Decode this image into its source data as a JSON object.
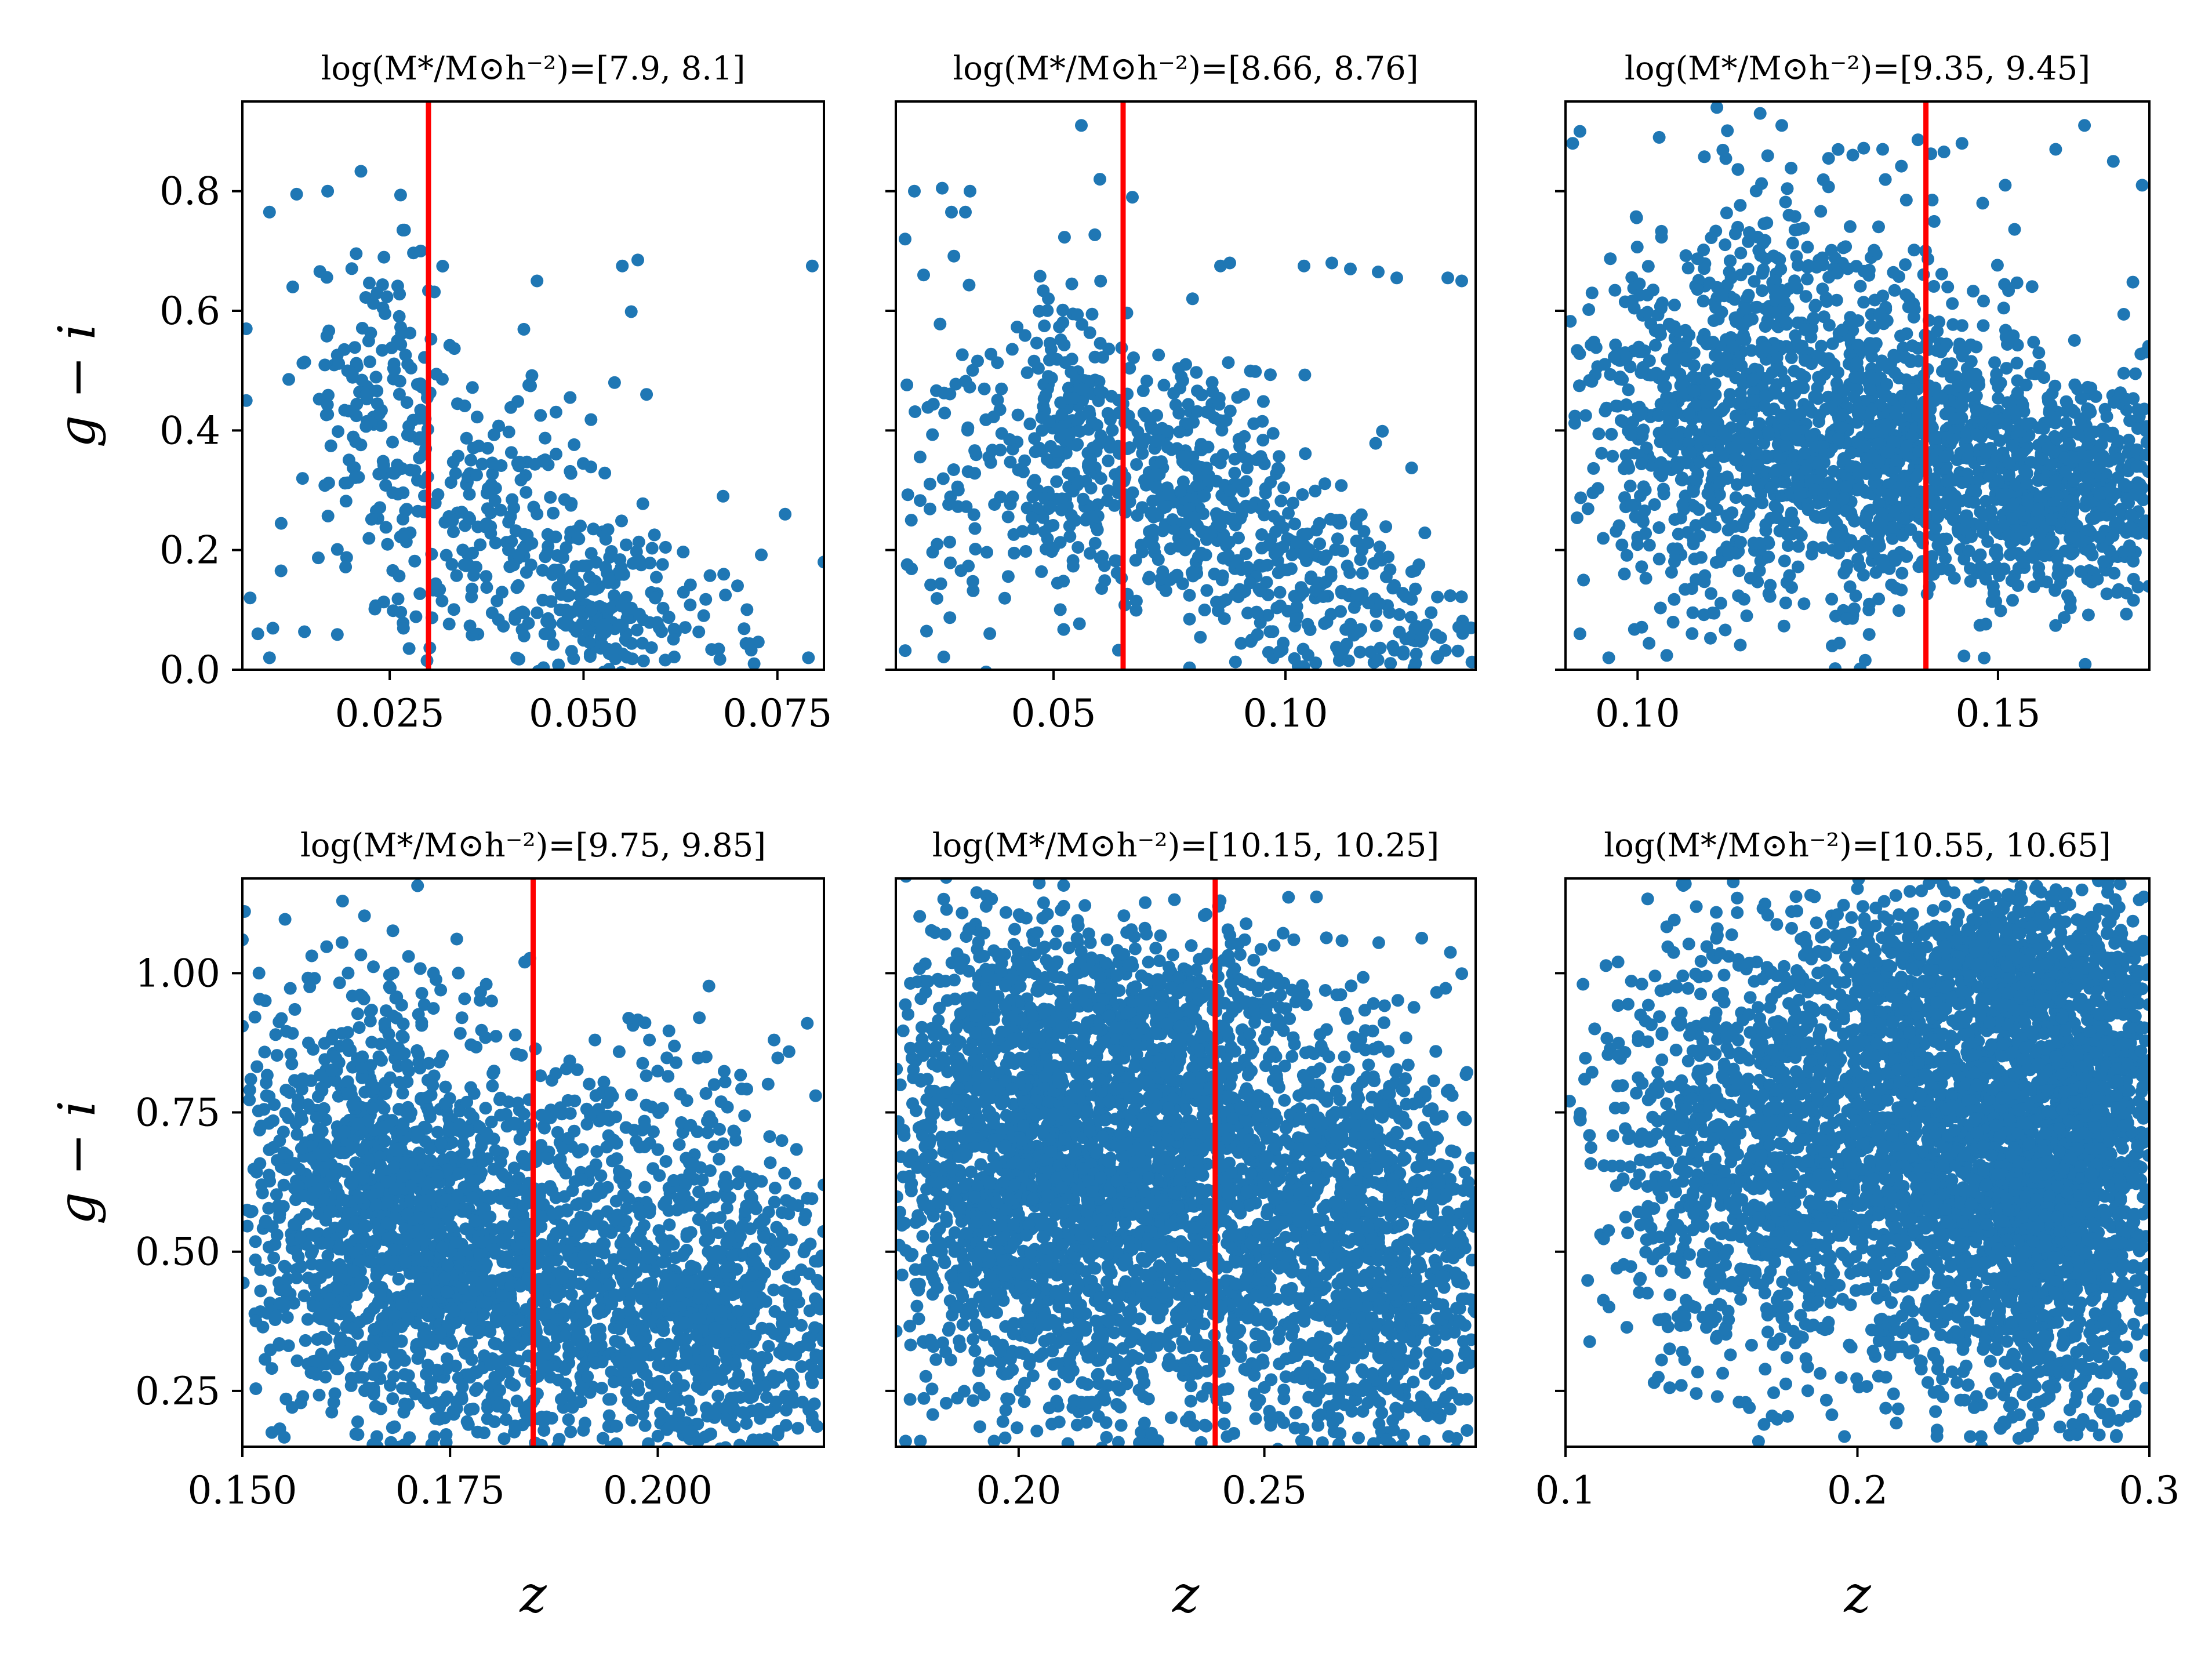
{
  "colors": {
    "points": "#1f77b4",
    "vline": "#ff0000",
    "axes": "#000000"
  },
  "chart_data": [
    {
      "type": "scatter",
      "title": "log(M*/M⊙h⁻²)=[7.9, 8.1]",
      "xlabel": "",
      "ylabel": "g − i",
      "xlim": [
        0.006,
        0.081
      ],
      "ylim": [
        0.0,
        0.95
      ],
      "xticks": [
        0.025,
        0.05,
        0.075
      ],
      "xtick_labels": [
        "0.025",
        "0.050",
        "0.075"
      ],
      "yticks": [
        0.0,
        0.2,
        0.4,
        0.6,
        0.8
      ],
      "ytick_labels": [
        "0.0",
        "0.2",
        "0.4",
        "0.6",
        "0.8"
      ],
      "vline": 0.03,
      "clusters": [
        {
          "x": 0.024,
          "y": 0.45,
          "sx": 0.005,
          "sy": 0.14,
          "n": 150
        },
        {
          "x": 0.04,
          "y": 0.22,
          "sx": 0.008,
          "sy": 0.1,
          "n": 180
        },
        {
          "x": 0.053,
          "y": 0.1,
          "sx": 0.005,
          "sy": 0.06,
          "n": 150
        },
        {
          "x": 0.03,
          "y": 0.3,
          "sx": 0.012,
          "sy": 0.18,
          "n": 60
        },
        {
          "x": 0.065,
          "y": 0.08,
          "sx": 0.008,
          "sy": 0.06,
          "n": 25
        }
      ],
      "extra_points": [
        [
          0.0095,
          0.765
        ],
        [
          0.013,
          0.795
        ],
        [
          0.017,
          0.8
        ],
        [
          0.0125,
          0.64
        ],
        [
          0.0065,
          0.57
        ],
        [
          0.0065,
          0.45
        ],
        [
          0.007,
          0.12
        ],
        [
          0.008,
          0.06
        ],
        [
          0.0095,
          0.02
        ],
        [
          0.054,
          0.48
        ],
        [
          0.055,
          0.675
        ],
        [
          0.057,
          0.685
        ],
        [
          0.0795,
          0.675
        ],
        [
          0.079,
          0.02
        ],
        [
          0.081,
          0.18
        ],
        [
          0.044,
          0.65
        ],
        [
          0.068,
          0.29
        ],
        [
          0.076,
          0.26
        ],
        [
          0.072,
          0.01
        ],
        [
          0.029,
          0.7
        ]
      ]
    },
    {
      "type": "scatter",
      "title": "log(M*/M⊙h⁻²)=[8.66, 8.76]",
      "xlabel": "",
      "ylabel": "",
      "xlim": [
        0.016,
        0.141
      ],
      "ylim": [
        0.0,
        0.95
      ],
      "xticks": [
        0.05,
        0.1
      ],
      "xtick_labels": [
        "0.05",
        "0.10"
      ],
      "yticks": [
        0.0,
        0.2,
        0.4,
        0.6,
        0.8
      ],
      "ytick_labels": [],
      "vline": 0.065,
      "clusters": [
        {
          "x": 0.055,
          "y": 0.38,
          "sx": 0.006,
          "sy": 0.13,
          "n": 220
        },
        {
          "x": 0.08,
          "y": 0.3,
          "sx": 0.01,
          "sy": 0.1,
          "n": 320
        },
        {
          "x": 0.105,
          "y": 0.14,
          "sx": 0.012,
          "sy": 0.08,
          "n": 200
        },
        {
          "x": 0.03,
          "y": 0.32,
          "sx": 0.01,
          "sy": 0.15,
          "n": 100
        },
        {
          "x": 0.125,
          "y": 0.05,
          "sx": 0.01,
          "sy": 0.04,
          "n": 60
        }
      ],
      "extra_points": [
        [
          0.02,
          0.8
        ],
        [
          0.026,
          0.805
        ],
        [
          0.032,
          0.8
        ],
        [
          0.028,
          0.765
        ],
        [
          0.031,
          0.765
        ],
        [
          0.056,
          0.91
        ],
        [
          0.067,
          0.79
        ],
        [
          0.06,
          0.82
        ],
        [
          0.104,
          0.675
        ],
        [
          0.11,
          0.68
        ],
        [
          0.114,
          0.67
        ],
        [
          0.12,
          0.665
        ],
        [
          0.124,
          0.655
        ],
        [
          0.135,
          0.655
        ],
        [
          0.138,
          0.65
        ],
        [
          0.086,
          0.675
        ],
        [
          0.088,
          0.68
        ],
        [
          0.14,
          0.07
        ],
        [
          0.018,
          0.72
        ],
        [
          0.022,
          0.66
        ]
      ]
    },
    {
      "type": "scatter",
      "title": "log(M*/M⊙h⁻²)=[9.35, 9.45]",
      "xlabel": "",
      "ylabel": "",
      "xlim": [
        0.09,
        0.171
      ],
      "ylim": [
        0.0,
        0.95
      ],
      "xticks": [
        0.1,
        0.15
      ],
      "xtick_labels": [
        "0.10",
        "0.15"
      ],
      "yticks": [
        0.0,
        0.2,
        0.4,
        0.6,
        0.8
      ],
      "ytick_labels": [],
      "vline": 0.14,
      "clusters": [
        {
          "x": 0.11,
          "y": 0.42,
          "sx": 0.01,
          "sy": 0.16,
          "n": 700
        },
        {
          "x": 0.135,
          "y": 0.35,
          "sx": 0.011,
          "sy": 0.12,
          "n": 900
        },
        {
          "x": 0.16,
          "y": 0.3,
          "sx": 0.008,
          "sy": 0.1,
          "n": 600
        },
        {
          "x": 0.125,
          "y": 0.62,
          "sx": 0.012,
          "sy": 0.12,
          "n": 180
        }
      ],
      "extra_points": [
        [
          0.091,
          0.88
        ],
        [
          0.092,
          0.9
        ],
        [
          0.103,
          0.89
        ],
        [
          0.12,
          0.91
        ],
        [
          0.117,
          0.93
        ],
        [
          0.111,
          0.94
        ],
        [
          0.134,
          0.87
        ],
        [
          0.145,
          0.88
        ],
        [
          0.158,
          0.87
        ],
        [
          0.162,
          0.91
        ],
        [
          0.166,
          0.85
        ],
        [
          0.17,
          0.81
        ],
        [
          0.151,
          0.81
        ],
        [
          0.096,
          0.02
        ],
        [
          0.092,
          0.06
        ]
      ]
    },
    {
      "type": "scatter",
      "title": "log(M*/M⊙h⁻²)=[9.75, 9.85]",
      "xlabel": "z",
      "ylabel": "g − i",
      "xlim": [
        0.15,
        0.22
      ],
      "ylim": [
        0.15,
        1.17
      ],
      "xticks": [
        0.15,
        0.175,
        0.2
      ],
      "xtick_labels": [
        "0.150",
        "0.175",
        "0.200"
      ],
      "yticks": [
        0.25,
        0.5,
        0.75,
        1.0
      ],
      "ytick_labels": [
        "0.25",
        "0.50",
        "0.75",
        "1.00"
      ],
      "vline": 0.185,
      "clusters": [
        {
          "x": 0.165,
          "y": 0.58,
          "sx": 0.008,
          "sy": 0.2,
          "n": 1100
        },
        {
          "x": 0.18,
          "y": 0.45,
          "sx": 0.008,
          "sy": 0.17,
          "n": 900
        },
        {
          "x": 0.205,
          "y": 0.38,
          "sx": 0.009,
          "sy": 0.14,
          "n": 900
        },
        {
          "x": 0.2,
          "y": 0.72,
          "sx": 0.008,
          "sy": 0.1,
          "n": 120
        }
      ],
      "extra_points": [
        [
          0.15,
          1.06
        ],
        [
          0.152,
          1.0
        ],
        [
          0.162,
          1.055
        ],
        [
          0.17,
          1.03
        ],
        [
          0.173,
          1.0
        ],
        [
          0.176,
          1.0
        ],
        [
          0.18,
          0.95
        ],
        [
          0.199,
          0.88
        ],
        [
          0.205,
          0.92
        ],
        [
          0.218,
          0.91
        ],
        [
          0.214,
          0.88
        ],
        [
          0.219,
          0.78
        ],
        [
          0.22,
          0.62
        ]
      ]
    },
    {
      "type": "scatter",
      "title": "log(M*/M⊙h⁻²)=[10.15, 10.25]",
      "xlabel": "z",
      "ylabel": "",
      "xlim": [
        0.175,
        0.293
      ],
      "ylim": [
        0.15,
        1.17
      ],
      "xticks": [
        0.2,
        0.25
      ],
      "xtick_labels": [
        "0.20",
        "0.25"
      ],
      "yticks": [
        0.25,
        0.5,
        0.75,
        1.0
      ],
      "ytick_labels": [],
      "vline": 0.24,
      "clusters": [
        {
          "x": 0.2,
          "y": 0.65,
          "sx": 0.014,
          "sy": 0.22,
          "n": 1500
        },
        {
          "x": 0.23,
          "y": 0.62,
          "sx": 0.014,
          "sy": 0.22,
          "n": 1500
        },
        {
          "x": 0.27,
          "y": 0.5,
          "sx": 0.014,
          "sy": 0.2,
          "n": 1300
        },
        {
          "x": 0.22,
          "y": 0.95,
          "sx": 0.02,
          "sy": 0.05,
          "n": 250
        }
      ],
      "extra_points": [
        [
          0.241,
          1.13
        ],
        [
          0.246,
          1.06
        ],
        [
          0.252,
          1.05
        ],
        [
          0.256,
          1.06
        ],
        [
          0.218,
          1.06
        ],
        [
          0.226,
          1.07
        ],
        [
          0.185,
          1.07
        ],
        [
          0.19,
          1.08
        ],
        [
          0.177,
          0.16
        ],
        [
          0.18,
          0.16
        ],
        [
          0.195,
          0.16
        ]
      ]
    },
    {
      "type": "scatter",
      "title": "log(M*/M⊙h⁻²)=[10.55, 10.65]",
      "xlabel": "z",
      "ylabel": "",
      "xlim": [
        0.1,
        0.3
      ],
      "ylim": [
        0.15,
        1.17
      ],
      "xticks": [
        0.1,
        0.2,
        0.3
      ],
      "xtick_labels": [
        "0.1",
        "0.2",
        "0.3"
      ],
      "yticks": [
        0.25,
        0.5,
        0.75,
        1.0
      ],
      "ytick_labels": [],
      "vline": null,
      "clusters": [
        {
          "x": 0.16,
          "y": 0.7,
          "sx": 0.025,
          "sy": 0.2,
          "n": 900
        },
        {
          "x": 0.22,
          "y": 0.7,
          "sx": 0.025,
          "sy": 0.22,
          "n": 1500
        },
        {
          "x": 0.27,
          "y": 0.68,
          "sx": 0.02,
          "sy": 0.24,
          "n": 2200
        },
        {
          "x": 0.25,
          "y": 1.02,
          "sx": 0.03,
          "sy": 0.05,
          "n": 350
        }
      ],
      "extra_points": [
        [
          0.14,
          1.16
        ],
        [
          0.152,
          1.08
        ],
        [
          0.184,
          1.14
        ],
        [
          0.198,
          1.1
        ],
        [
          0.23,
          1.12
        ],
        [
          0.252,
          1.14
        ],
        [
          0.268,
          1.15
        ],
        [
          0.29,
          1.16
        ],
        [
          0.106,
          0.98
        ],
        [
          0.11,
          0.9
        ],
        [
          0.118,
          1.02
        ],
        [
          0.163,
          0.22
        ],
        [
          0.168,
          0.19
        ],
        [
          0.152,
          0.24
        ],
        [
          0.24,
          0.22
        ],
        [
          0.262,
          0.23
        ]
      ]
    }
  ]
}
